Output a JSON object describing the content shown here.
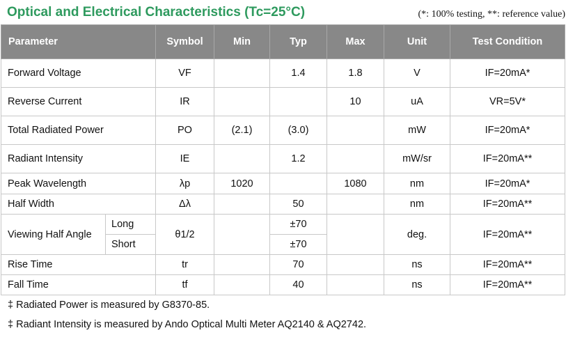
{
  "header": {
    "title": "Optical and Electrical Characteristics (Tc=25°C)",
    "note": "(*: 100% testing, **: reference value)"
  },
  "table": {
    "columns": [
      "Parameter",
      "Symbol",
      "Min",
      "Typ",
      "Max",
      "Unit",
      "Test Condition"
    ],
    "rows": [
      {
        "parameter": "Forward Voltage",
        "symbol": "VF",
        "min": "",
        "typ": "1.4",
        "max": "1.8",
        "unit": "V",
        "condition": "IF=20mA*"
      },
      {
        "parameter": "Reverse Current",
        "symbol": "IR",
        "min": "",
        "typ": "",
        "max": "10",
        "unit": "uA",
        "condition": "VR=5V*"
      },
      {
        "parameter": "Total Radiated Power",
        "symbol": "PO",
        "min": "(2.1)",
        "typ": "(3.0)",
        "max": "",
        "unit": "mW",
        "condition": "IF=20mA*"
      },
      {
        "parameter": "Radiant Intensity",
        "symbol": "IE",
        "min": "",
        "typ": "1.2",
        "max": "",
        "unit": "mW/sr",
        "condition": "IF=20mA**"
      },
      {
        "parameter": "Peak Wavelength",
        "symbol": "λp",
        "min": "1020",
        "typ": "",
        "max": "1080",
        "unit": "nm",
        "condition": "IF=20mA*"
      },
      {
        "parameter": "Half Width",
        "symbol": "Δλ",
        "min": "",
        "typ": "50",
        "max": "",
        "unit": "nm",
        "condition": "IF=20mA**"
      },
      {
        "parameter": "Rise Time",
        "symbol": "tr",
        "min": "",
        "typ": "70",
        "max": "",
        "unit": "ns",
        "condition": "IF=20mA**"
      },
      {
        "parameter": "Fall Time",
        "symbol": "tf",
        "min": "",
        "typ": "40",
        "max": "",
        "unit": "ns",
        "condition": "IF=20mA**"
      }
    ],
    "viewing": {
      "parameter": "Viewing Half Angle",
      "symbol": "θ1/2",
      "sub_long": "Long",
      "sub_short": "Short",
      "typ_long": "±70",
      "typ_short": "±70",
      "unit": "deg.",
      "condition": "IF=20mA**"
    }
  },
  "footnotes": [
    "‡ Radiated Power is measured by G8370-85.",
    "‡ Radiant Intensity is measured by Ando Optical Multi Meter AQ2140 & AQ2742."
  ]
}
